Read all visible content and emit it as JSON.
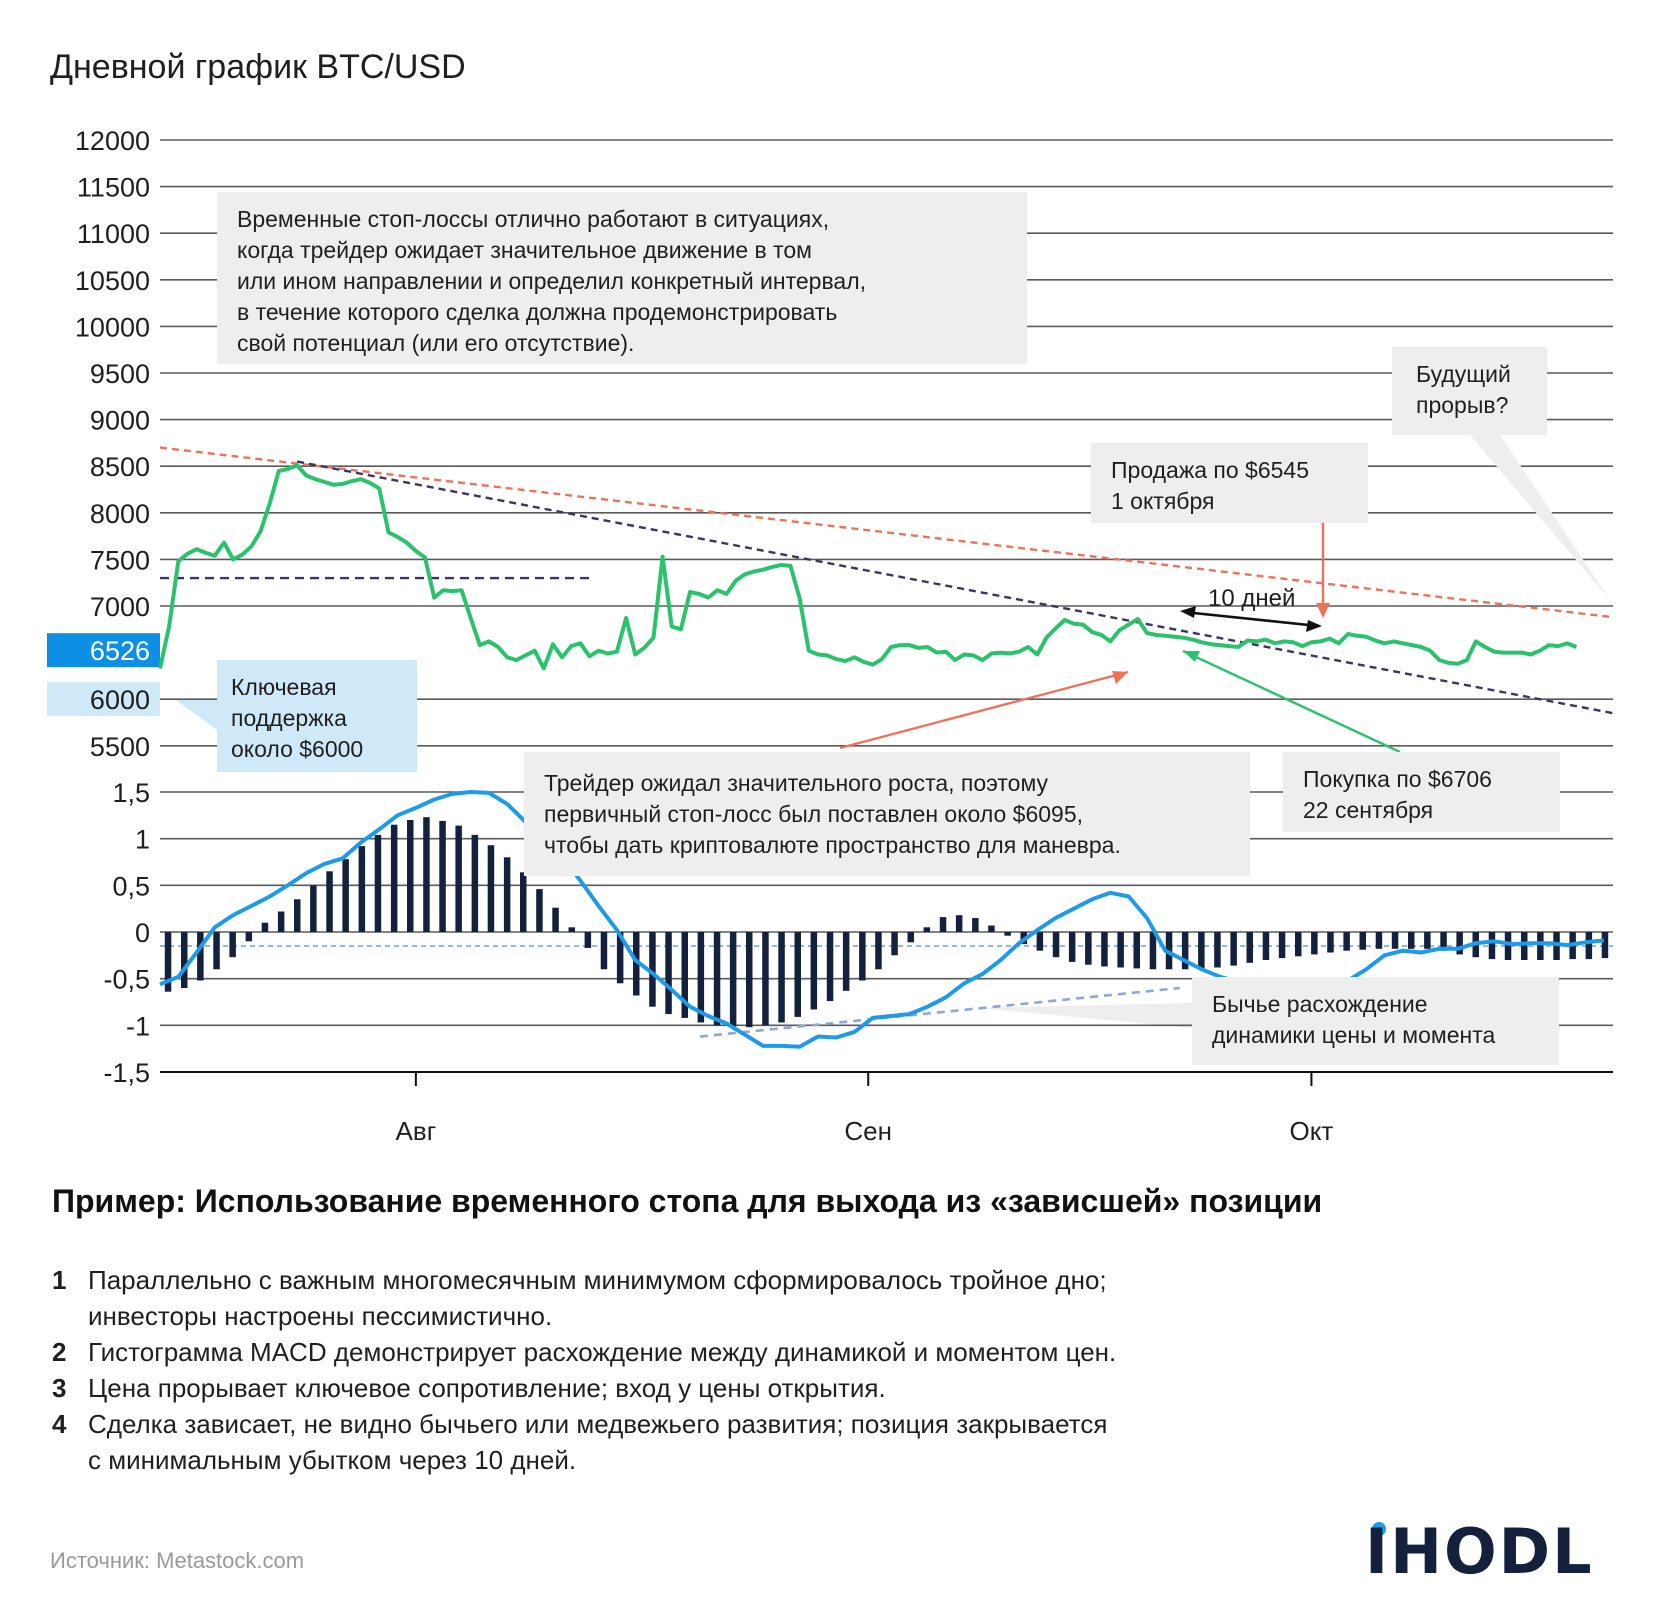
{
  "title": "Дневной график BTC/USD",
  "colors": {
    "price": "#2ac36b",
    "macd": "#1e9be8",
    "histogram": "#14213d",
    "resistance": "#f07158",
    "trend": "#3d3561",
    "divergence": "#8fa6d6",
    "grid": "#5a5a5a",
    "highlight": "#0d8fe6"
  },
  "annotations": {
    "time_stops": [
      "Временные стоп-лоссы отлично работают в ситуациях,",
      "когда трейдер ожидает значительное движение в том",
      "или ином направлении и определил конкретный интервал,",
      "в течение которого сделка должна продемонстрировать",
      "свой потенциал (или его отсутствие)."
    ],
    "breakout": [
      "Будущий",
      "прорыв?"
    ],
    "sell": [
      "Продажа по $6545",
      "1 октября"
    ],
    "ten_days": "10 дней",
    "support": [
      "Ключевая",
      "поддержка",
      "около $6000"
    ],
    "trader": [
      "Трейдер ожидал значительного роста, поэтому",
      "первичный стоп-лосс был поставлен около $6095,",
      "чтобы дать криптовалюте пространство для маневра."
    ],
    "buy": [
      "Покупка по $6706",
      "22 сентября"
    ],
    "divergence": [
      "Бычье расхождение",
      "динамики цены и момента"
    ]
  },
  "heading": "Пример: Использование временного стопа для выхода из «зависшей» позиции",
  "steps": [
    {
      "num": "1",
      "lines": [
        "Параллельно с важным многомесячным минимумом сформировалось тройное дно;",
        "инвесторы настроены пессимистично."
      ]
    },
    {
      "num": "2",
      "lines": [
        "Гистограмма MACD демонстрирует расхождение между динамикой и моментом цен."
      ]
    },
    {
      "num": "3",
      "lines": [
        "Цена прорывает ключевое сопротивление; вход у цены открытия."
      ]
    },
    {
      "num": "4",
      "lines": [
        "Сделка зависает, не видно бычьего или медвежьего развития; позиция закрывается",
        "с минимальным убытком через 10 дней."
      ]
    }
  ],
  "source": "Источник: Metastock.com",
  "logo": "IHODL",
  "chart_data": [
    {
      "type": "line",
      "title": "Дневной график BTC/USD",
      "yticks": [
        12000,
        11500,
        11000,
        10500,
        10000,
        9500,
        9000,
        8500,
        8000,
        7500,
        7000,
        6000,
        5500
      ],
      "highlight_label": "6526",
      "highlight_value": 6526,
      "ylim": [
        5300,
        12000
      ],
      "x_labels": [
        {
          "label": "Авг",
          "x": 28
        },
        {
          "label": "Сен",
          "x": 77.5
        },
        {
          "label": "Окт",
          "x": 126
        }
      ],
      "xlim": [
        0,
        159
      ],
      "series": [
        {
          "values": [
            [
              0,
              6330
            ],
            [
              1,
              6780
            ],
            [
              2,
              7480
            ],
            [
              3,
              7560
            ],
            [
              4,
              7610
            ],
            [
              5,
              7570
            ],
            [
              6,
              7540
            ],
            [
              7,
              7680
            ],
            [
              8,
              7500
            ],
            [
              9,
              7550
            ],
            [
              10,
              7640
            ],
            [
              11,
              7800
            ],
            [
              12,
              8100
            ],
            [
              13,
              8450
            ],
            [
              14,
              8470
            ],
            [
              15,
              8510
            ],
            [
              16,
              8400
            ],
            [
              17,
              8360
            ],
            [
              18,
              8330
            ],
            [
              19,
              8300
            ],
            [
              20,
              8310
            ],
            [
              21,
              8340
            ],
            [
              22,
              8360
            ],
            [
              23,
              8320
            ],
            [
              24,
              8260
            ],
            [
              25,
              7790
            ],
            [
              26,
              7740
            ],
            [
              27,
              7680
            ],
            [
              28,
              7590
            ],
            [
              29,
              7520
            ],
            [
              30,
              7090
            ],
            [
              31,
              7170
            ],
            [
              32,
              7160
            ],
            [
              33,
              7170
            ],
            [
              34,
              6870
            ],
            [
              35,
              6580
            ],
            [
              36,
              6620
            ],
            [
              37,
              6560
            ],
            [
              38,
              6450
            ],
            [
              39,
              6420
            ],
            [
              40,
              6470
            ],
            [
              41,
              6520
            ],
            [
              42,
              6330
            ],
            [
              43,
              6590
            ],
            [
              44,
              6450
            ],
            [
              45,
              6570
            ],
            [
              46,
              6600
            ],
            [
              47,
              6460
            ],
            [
              48,
              6520
            ],
            [
              49,
              6490
            ],
            [
              50,
              6510
            ],
            [
              51,
              6870
            ],
            [
              52,
              6480
            ],
            [
              53,
              6550
            ],
            [
              54,
              6660
            ],
            [
              55,
              7530
            ],
            [
              56,
              6780
            ],
            [
              57,
              6750
            ],
            [
              58,
              7150
            ],
            [
              59,
              7130
            ],
            [
              60,
              7090
            ],
            [
              61,
              7170
            ],
            [
              62,
              7130
            ],
            [
              63,
              7270
            ],
            [
              64,
              7340
            ],
            [
              65,
              7370
            ],
            [
              66,
              7390
            ],
            [
              67,
              7420
            ],
            [
              68,
              7440
            ],
            [
              69,
              7430
            ],
            [
              70,
              7080
            ],
            [
              71,
              6520
            ],
            [
              72,
              6480
            ],
            [
              73,
              6470
            ],
            [
              74,
              6430
            ],
            [
              75,
              6410
            ],
            [
              76,
              6450
            ],
            [
              77,
              6400
            ],
            [
              78,
              6370
            ],
            [
              79,
              6430
            ],
            [
              80,
              6560
            ],
            [
              81,
              6580
            ],
            [
              82,
              6580
            ],
            [
              83,
              6550
            ],
            [
              84,
              6560
            ],
            [
              85,
              6500
            ],
            [
              86,
              6510
            ],
            [
              87,
              6420
            ],
            [
              88,
              6480
            ],
            [
              89,
              6470
            ],
            [
              90,
              6420
            ],
            [
              91,
              6490
            ],
            [
              92,
              6500
            ],
            [
              93,
              6490
            ],
            [
              94,
              6510
            ],
            [
              95,
              6560
            ],
            [
              96,
              6480
            ],
            [
              97,
              6660
            ],
            [
              98,
              6760
            ],
            [
              99,
              6850
            ],
            [
              100,
              6810
            ],
            [
              101,
              6800
            ],
            [
              102,
              6720
            ],
            [
              103,
              6690
            ],
            [
              104,
              6620
            ],
            [
              105,
              6740
            ],
            [
              106,
              6800
            ],
            [
              107,
              6860
            ],
            [
              108,
              6710
            ],
            [
              109,
              6690
            ],
            [
              110,
              6680
            ],
            [
              111,
              6670
            ],
            [
              112,
              6660
            ],
            [
              113,
              6640
            ],
            [
              114,
              6610
            ],
            [
              115,
              6590
            ],
            [
              116,
              6580
            ],
            [
              117,
              6570
            ],
            [
              118,
              6560
            ],
            [
              119,
              6630
            ],
            [
              120,
              6620
            ],
            [
              121,
              6640
            ],
            [
              122,
              6600
            ],
            [
              123,
              6620
            ],
            [
              124,
              6610
            ],
            [
              125,
              6570
            ],
            [
              126,
              6610
            ],
            [
              127,
              6620
            ],
            [
              128,
              6650
            ],
            [
              129,
              6600
            ],
            [
              130,
              6700
            ],
            [
              131,
              6680
            ],
            [
              132,
              6670
            ],
            [
              133,
              6630
            ],
            [
              134,
              6600
            ],
            [
              135,
              6620
            ],
            [
              136,
              6600
            ],
            [
              137,
              6580
            ],
            [
              138,
              6560
            ],
            [
              139,
              6520
            ],
            [
              140,
              6420
            ],
            [
              141,
              6390
            ],
            [
              142,
              6380
            ],
            [
              143,
              6420
            ],
            [
              144,
              6620
            ],
            [
              145,
              6560
            ],
            [
              146,
              6510
            ],
            [
              147,
              6500
            ],
            [
              148,
              6500
            ],
            [
              149,
              6500
            ],
            [
              150,
              6480
            ],
            [
              151,
              6520
            ],
            [
              152,
              6580
            ],
            [
              153,
              6570
            ],
            [
              154,
              6600
            ],
            [
              155,
              6560
            ]
          ]
        },
        {
          "name": "resistance",
          "values": [
            [
              0,
              8700
            ],
            [
              159,
              6880
            ]
          ]
        },
        {
          "name": "trend",
          "values": [
            [
              15,
              8550
            ],
            [
              159,
              5850
            ]
          ]
        },
        {
          "name": "level",
          "values": [
            [
              0,
              7300
            ],
            [
              47,
              7300
            ]
          ]
        }
      ]
    },
    {
      "type": "bar",
      "yticks": [
        "1,5",
        "1",
        "0,5",
        "0",
        "-0,5",
        "-1",
        "-1,5"
      ],
      "ylim": [
        -1.5,
        1.5
      ],
      "macd_line": [
        [
          0,
          -0.56
        ],
        [
          2,
          -0.48
        ],
        [
          4,
          -0.22
        ],
        [
          6,
          0.05
        ],
        [
          8,
          0.18
        ],
        [
          10,
          0.28
        ],
        [
          12,
          0.38
        ],
        [
          14,
          0.5
        ],
        [
          16,
          0.63
        ],
        [
          18,
          0.73
        ],
        [
          20,
          0.79
        ],
        [
          22,
          0.96
        ],
        [
          24,
          1.1
        ],
        [
          26,
          1.25
        ],
        [
          28,
          1.33
        ],
        [
          30,
          1.42
        ],
        [
          32,
          1.48
        ],
        [
          34,
          1.5
        ],
        [
          36,
          1.49
        ],
        [
          38,
          1.37
        ],
        [
          40,
          1.18
        ],
        [
          42,
          1.0
        ],
        [
          44,
          0.81
        ],
        [
          46,
          0.55
        ],
        [
          48,
          0.28
        ],
        [
          50,
          0.02
        ],
        [
          52,
          -0.3
        ],
        [
          54,
          -0.45
        ],
        [
          56,
          -0.62
        ],
        [
          58,
          -0.8
        ],
        [
          60,
          -0.9
        ],
        [
          62,
          -0.98
        ],
        [
          64,
          -1.1
        ],
        [
          66,
          -1.22
        ],
        [
          68,
          -1.22
        ],
        [
          70,
          -1.23
        ],
        [
          72,
          -1.12
        ],
        [
          74,
          -1.13
        ],
        [
          76,
          -1.07
        ],
        [
          78,
          -0.92
        ],
        [
          80,
          -0.9
        ],
        [
          82,
          -0.88
        ],
        [
          84,
          -0.8
        ],
        [
          86,
          -0.7
        ],
        [
          88,
          -0.55
        ],
        [
          90,
          -0.45
        ],
        [
          92,
          -0.3
        ],
        [
          94,
          -0.12
        ],
        [
          96,
          0.02
        ],
        [
          98,
          0.15
        ],
        [
          100,
          0.25
        ],
        [
          102,
          0.35
        ],
        [
          104,
          0.42
        ],
        [
          106,
          0.38
        ],
        [
          108,
          0.15
        ],
        [
          110,
          -0.2
        ],
        [
          112,
          -0.3
        ],
        [
          114,
          -0.4
        ],
        [
          116,
          -0.48
        ],
        [
          118,
          -0.53
        ],
        [
          120,
          -0.54
        ],
        [
          122,
          -0.51
        ],
        [
          124,
          -0.52
        ],
        [
          126,
          -0.56
        ],
        [
          128,
          -0.55
        ],
        [
          130,
          -0.52
        ],
        [
          132,
          -0.4
        ],
        [
          134,
          -0.25
        ],
        [
          136,
          -0.2
        ],
        [
          138,
          -0.22
        ],
        [
          140,
          -0.18
        ],
        [
          142,
          -0.18
        ],
        [
          144,
          -0.12
        ],
        [
          146,
          -0.1
        ],
        [
          148,
          -0.13
        ],
        [
          150,
          -0.12
        ],
        [
          152,
          -0.12
        ],
        [
          154,
          -0.14
        ],
        [
          156,
          -0.11
        ],
        [
          158,
          -0.09
        ]
      ],
      "histogram": [
        -0.64,
        -0.6,
        -0.52,
        -0.4,
        -0.27,
        -0.1,
        0.1,
        0.22,
        0.35,
        0.5,
        0.65,
        0.78,
        0.92,
        1.04,
        1.15,
        1.2,
        1.23,
        1.19,
        1.14,
        1.04,
        0.93,
        0.8,
        0.64,
        0.46,
        0.26,
        0.05,
        -0.17,
        -0.4,
        -0.55,
        -0.68,
        -0.8,
        -0.88,
        -0.92,
        -0.97,
        -1.0,
        -1.01,
        -1.02,
        -1.0,
        -0.97,
        -0.91,
        -0.83,
        -0.74,
        -0.63,
        -0.52,
        -0.4,
        -0.25,
        -0.11,
        0.05,
        0.16,
        0.18,
        0.15,
        0.07,
        -0.04,
        -0.13,
        -0.2,
        -0.27,
        -0.32,
        -0.35,
        -0.37,
        -0.38,
        -0.39,
        -0.4,
        -0.4,
        -0.4,
        -0.39,
        -0.38,
        -0.36,
        -0.33,
        -0.3,
        -0.28,
        -0.26,
        -0.24,
        -0.22,
        -0.2,
        -0.19,
        -0.18,
        -0.18,
        -0.18,
        -0.18,
        -0.2,
        -0.24,
        -0.27,
        -0.29,
        -0.3,
        -0.3,
        -0.3,
        -0.3,
        -0.29,
        -0.29,
        -0.28
      ]
    }
  ]
}
